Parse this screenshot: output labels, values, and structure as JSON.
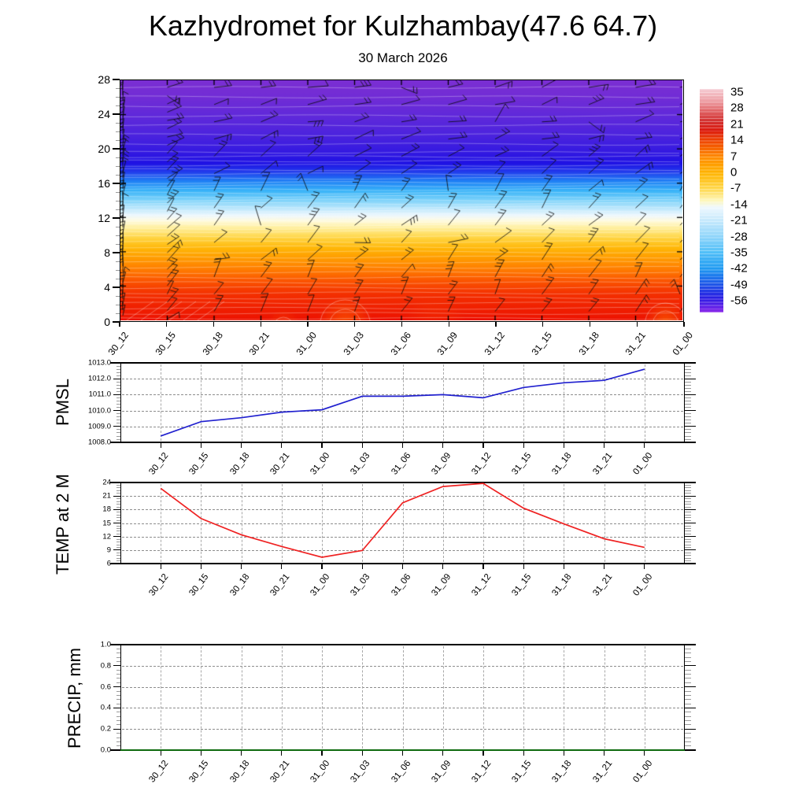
{
  "header": {
    "title": "Kazhydromet for Kulzhambay(47.6 64.7)",
    "subtitle": "30 March 2026"
  },
  "time_axis": {
    "labels": [
      "30_12",
      "30_15",
      "30_18",
      "30_21",
      "31_00",
      "31_03",
      "31_06",
      "31_09",
      "31_12",
      "31_15",
      "31_18",
      "31_21",
      "01_00"
    ]
  },
  "cross_section": {
    "y_tick_labels": [
      "0",
      "4",
      "8",
      "12",
      "16",
      "20",
      "24",
      "28"
    ],
    "y_major_step": 4,
    "y_minor_step": 1,
    "gradient_stops": [
      [
        0.0,
        "#7c2fd3"
      ],
      [
        0.08,
        "#6f2cd6"
      ],
      [
        0.16,
        "#5d28db"
      ],
      [
        0.23,
        "#4b23de"
      ],
      [
        0.3,
        "#3419e1"
      ],
      [
        0.345,
        "#1f12e4"
      ],
      [
        0.38,
        "#2239ec"
      ],
      [
        0.42,
        "#1f80f5"
      ],
      [
        0.46,
        "#38b3f8"
      ],
      [
        0.5,
        "#7ed3fa"
      ],
      [
        0.535,
        "#bee8fc"
      ],
      [
        0.562,
        "#ecf7fe"
      ],
      [
        0.585,
        "#fffbdf"
      ],
      [
        0.615,
        "#ffef9b"
      ],
      [
        0.658,
        "#ffd33e"
      ],
      [
        0.7,
        "#ffb607"
      ],
      [
        0.745,
        "#ff9900"
      ],
      [
        0.79,
        "#ff7b00"
      ],
      [
        0.835,
        "#fb5500"
      ],
      [
        0.89,
        "#f43000"
      ],
      [
        1.0,
        "#ed1201"
      ]
    ],
    "contour_color": "rgba(255,255,255,0.45)",
    "barb_color": "rgba(12,12,12,0.93)",
    "barb_seed": 20260330
  },
  "colorbar": {
    "labels": [
      "35",
      "28",
      "21",
      "14",
      "7",
      "0",
      "-7",
      "-14",
      "-21",
      "-28",
      "-35",
      "-42",
      "-49",
      "-56"
    ],
    "stops": [
      [
        0.0,
        "#f6ccd3"
      ],
      [
        0.05,
        "#eea3a9"
      ],
      [
        0.1,
        "#e06163"
      ],
      [
        0.145,
        "#d23130"
      ],
      [
        0.185,
        "#dc1c10"
      ],
      [
        0.235,
        "#ef4700"
      ],
      [
        0.305,
        "#ff8c00"
      ],
      [
        0.375,
        "#ffb300"
      ],
      [
        0.445,
        "#ffd84d"
      ],
      [
        0.5,
        "#fdf7bd"
      ],
      [
        0.53,
        "#eef8fe"
      ],
      [
        0.59,
        "#c6e9fc"
      ],
      [
        0.66,
        "#8fd5fa"
      ],
      [
        0.73,
        "#53c0f8"
      ],
      [
        0.805,
        "#209af1"
      ],
      [
        0.875,
        "#2056e8"
      ],
      [
        0.935,
        "#2b1ee2"
      ],
      [
        0.965,
        "#511fe6"
      ],
      [
        1.0,
        "#8f2cea"
      ]
    ]
  },
  "panels": [
    {
      "data_index": 1,
      "y_tick_labels": [
        "1013.0",
        "1012.0",
        "1011.0",
        "1010.0",
        "1009.0",
        "1008.0"
      ],
      "y_tick_values": [
        1013,
        1012,
        1011,
        1010,
        1009,
        1008
      ],
      "grid_values": [
        1012,
        1011,
        1010,
        1009
      ],
      "minor_step": 0.2
    },
    {
      "data_index": 2,
      "y_tick_labels": [
        "24",
        "21",
        "18",
        "15",
        "12",
        "9",
        "6"
      ],
      "y_tick_values": [
        24,
        21,
        18,
        15,
        12,
        9,
        6
      ],
      "grid_values": [
        21,
        18,
        15,
        12,
        9
      ],
      "minor_step": 0.6
    },
    {
      "data_index": 3,
      "y_tick_labels": [
        "1.0",
        "0.8",
        "0.6",
        "0.4",
        "0.2",
        "0.0"
      ],
      "y_tick_values": [
        1.0,
        0.8,
        0.6,
        0.4,
        0.2,
        0.0
      ],
      "grid_values": [
        0.8,
        0.6,
        0.4,
        0.2
      ],
      "minor_step": 0.04
    }
  ],
  "chart_data": [
    {
      "type": "heatmap",
      "name": "Temperature cross-section with wind barbs",
      "x": [
        "30_12",
        "30_15",
        "30_18",
        "30_21",
        "31_00",
        "31_03",
        "31_06",
        "31_09",
        "31_12",
        "31_15",
        "31_18",
        "31_21",
        "01_00"
      ],
      "ylim": [
        0,
        28
      ],
      "y_ticks": [
        0,
        4,
        8,
        12,
        16,
        20,
        24,
        28
      ],
      "colorbar_levels": [
        35,
        28,
        21,
        14,
        7,
        0,
        -7,
        -14,
        -21,
        -28,
        -35,
        -42,
        -49,
        -56
      ],
      "approx_temperature_by_height": {
        "0": 24,
        "2": 20,
        "4": 14,
        "6": 8,
        "8": 2,
        "10": -4,
        "12": -13,
        "13": -18,
        "14": -24,
        "15": -30,
        "16": -37,
        "17": -45,
        "18": -52,
        "19": -57,
        "20": -59,
        "22": -61,
        "24": -62,
        "26": -62,
        "28": -61
      },
      "overlay": "wind barbs at each 3-hour time step, all heights",
      "legend_position": "right colorbar"
    },
    {
      "type": "line",
      "name": "PMSL",
      "x": [
        "30_12",
        "30_15",
        "30_18",
        "30_21",
        "31_00",
        "31_03",
        "31_06",
        "31_09",
        "31_12",
        "31_15",
        "31_18",
        "31_21",
        "01_00"
      ],
      "values": [
        1008.4,
        1009.3,
        1009.55,
        1009.9,
        1010.05,
        1010.9,
        1010.9,
        1011.0,
        1010.8,
        1011.45,
        1011.75,
        1011.9,
        1012.6
      ],
      "ylim": [
        1008.0,
        1013.0
      ],
      "line_color": "#2121cf",
      "grid": "dashed"
    },
    {
      "type": "line",
      "name": "TEMP at 2 M",
      "x": [
        "30_12",
        "30_15",
        "30_18",
        "30_21",
        "31_00",
        "31_03",
        "31_06",
        "31_09",
        "31_12",
        "31_15",
        "31_18",
        "31_21",
        "01_00"
      ],
      "values": [
        22.7,
        16.0,
        12.4,
        9.8,
        7.4,
        8.9,
        19.5,
        23.1,
        23.8,
        18.3,
        14.8,
        11.5,
        9.6
      ],
      "ylim": [
        6,
        24
      ],
      "line_color": "#ef2222",
      "grid": "dashed"
    },
    {
      "type": "line",
      "name": "PRECIP, mm",
      "x": [
        "30_12",
        "30_15",
        "30_18",
        "30_21",
        "31_00",
        "31_03",
        "31_06",
        "31_09",
        "31_12",
        "31_15",
        "31_18",
        "31_21",
        "01_00"
      ],
      "values": [
        0,
        0,
        0,
        0,
        0,
        0,
        0,
        0,
        0,
        0,
        0,
        0,
        0
      ],
      "ylim": [
        0.0,
        1.0
      ],
      "line_color": "#107a10",
      "grid": "dashed"
    }
  ]
}
